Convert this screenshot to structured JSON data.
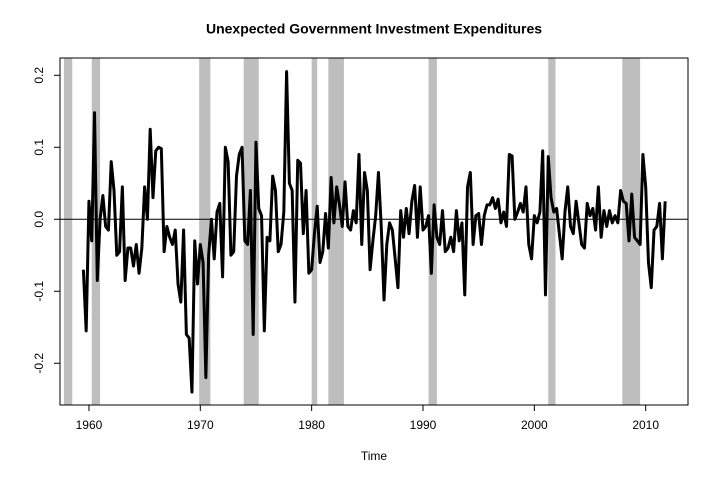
{
  "chart_data": {
    "type": "line",
    "title": "Unexpected Government Investment Expenditures",
    "xlabel": "Time",
    "xlim": [
      1957.4,
      2013.8
    ],
    "ylim": [
      -0.258,
      0.224
    ],
    "xticks": [
      1960,
      1970,
      1980,
      1990,
      2000,
      2010
    ],
    "yticks": [
      -0.2,
      -0.1,
      {
        "value": 0,
        "label": "0.0"
      },
      0.1,
      0.2
    ],
    "hline": 0,
    "shading": [
      [
        1957.75,
        1958.5
      ],
      [
        1960.25,
        1961.0
      ],
      [
        1969.9,
        1970.9
      ],
      [
        1973.9,
        1975.25
      ],
      [
        1980.0,
        1980.5
      ],
      [
        1981.5,
        1982.9
      ],
      [
        1990.5,
        1991.25
      ],
      [
        2001.25,
        2001.9
      ],
      [
        2007.9,
        2009.5
      ]
    ],
    "shading_color": "#bebebe",
    "series": [
      {
        "color": "#000000",
        "x": [
          1959.5,
          1959.75,
          1960,
          1960.25,
          1960.5,
          1960.75,
          1961,
          1961.25,
          1961.5,
          1961.75,
          1962,
          1962.25,
          1962.5,
          1962.75,
          1963,
          1963.25,
          1963.5,
          1963.75,
          1964,
          1964.25,
          1964.5,
          1964.75,
          1965,
          1965.25,
          1965.5,
          1965.75,
          1966,
          1966.25,
          1966.5,
          1966.75,
          1967,
          1967.25,
          1967.5,
          1967.75,
          1968,
          1968.25,
          1968.5,
          1968.75,
          1969,
          1969.25,
          1969.5,
          1969.75,
          1970,
          1970.25,
          1970.5,
          1970.75,
          1971,
          1971.25,
          1971.5,
          1971.75,
          1972,
          1972.25,
          1972.5,
          1972.75,
          1973,
          1973.25,
          1973.5,
          1973.75,
          1974,
          1974.25,
          1974.5,
          1974.75,
          1975,
          1975.25,
          1975.5,
          1975.75,
          1976,
          1976.25,
          1976.5,
          1976.75,
          1977,
          1977.25,
          1977.5,
          1977.75,
          1978,
          1978.25,
          1978.5,
          1978.75,
          1979,
          1979.25,
          1979.5,
          1979.75,
          1980,
          1980.25,
          1980.5,
          1980.75,
          1981,
          1981.25,
          1981.5,
          1981.75,
          1982,
          1982.25,
          1982.5,
          1982.75,
          1983,
          1983.25,
          1983.5,
          1983.75,
          1984,
          1984.25,
          1984.5,
          1984.75,
          1985,
          1985.25,
          1985.5,
          1985.75,
          1986,
          1986.25,
          1986.5,
          1986.75,
          1987,
          1987.25,
          1987.5,
          1987.75,
          1988,
          1988.25,
          1988.5,
          1988.75,
          1989,
          1989.25,
          1989.5,
          1989.75,
          1990,
          1990.25,
          1990.5,
          1990.75,
          1991,
          1991.25,
          1991.5,
          1991.75,
          1992,
          1992.25,
          1992.5,
          1992.75,
          1993,
          1993.25,
          1993.5,
          1993.75,
          1994,
          1994.25,
          1994.5,
          1994.75,
          1995,
          1995.25,
          1995.5,
          1995.75,
          1996,
          1996.25,
          1996.5,
          1996.75,
          1997,
          1997.25,
          1997.5,
          1997.75,
          1998,
          1998.25,
          1998.5,
          1998.75,
          1999,
          1999.25,
          1999.5,
          1999.75,
          2000,
          2000.25,
          2000.5,
          2000.75,
          2001,
          2001.25,
          2001.5,
          2001.75,
          2002,
          2002.25,
          2002.5,
          2002.75,
          2003,
          2003.25,
          2003.5,
          2003.75,
          2004,
          2004.25,
          2004.5,
          2004.75,
          2005,
          2005.25,
          2005.5,
          2005.75,
          2006,
          2006.25,
          2006.5,
          2006.75,
          2007,
          2007.25,
          2007.5,
          2007.75,
          2008,
          2008.25,
          2008.5,
          2008.75,
          2009,
          2009.25,
          2009.5,
          2009.75,
          2010,
          2010.25,
          2010.5,
          2010.75,
          2011,
          2011.25,
          2011.5,
          2011.75
        ],
        "values": [
          -0.07,
          -0.155,
          0.025,
          -0.03,
          0.148,
          -0.085,
          0.0,
          0.033,
          -0.01,
          -0.015,
          0.08,
          0.04,
          -0.05,
          -0.045,
          0.045,
          -0.085,
          -0.04,
          -0.04,
          -0.065,
          -0.035,
          -0.075,
          -0.04,
          0.045,
          0.0,
          0.125,
          0.03,
          0.095,
          0.1,
          0.098,
          -0.045,
          -0.01,
          -0.025,
          -0.035,
          -0.015,
          -0.09,
          -0.115,
          -0.015,
          -0.16,
          -0.165,
          -0.24,
          -0.03,
          -0.09,
          -0.035,
          -0.06,
          -0.22,
          -0.05,
          0.0,
          -0.055,
          0.01,
          0.022,
          -0.08,
          0.1,
          0.08,
          -0.05,
          -0.045,
          0.06,
          0.09,
          0.1,
          -0.03,
          -0.035,
          0.04,
          -0.16,
          0.107,
          0.015,
          0.005,
          -0.155,
          -0.025,
          -0.03,
          0.06,
          0.04,
          -0.045,
          -0.035,
          0.01,
          0.205,
          0.05,
          0.04,
          -0.115,
          0.082,
          0.078,
          -0.02,
          0.04,
          -0.075,
          -0.07,
          -0.02,
          0.018,
          -0.06,
          -0.045,
          0.008,
          -0.04,
          0.058,
          -0.005,
          0.045,
          0.02,
          -0.01,
          0.052,
          -0.01,
          -0.015,
          0.012,
          -0.005,
          0.09,
          -0.035,
          0.065,
          0.04,
          -0.07,
          -0.03,
          0.005,
          0.065,
          -0.01,
          -0.112,
          -0.035,
          -0.005,
          -0.015,
          -0.055,
          -0.095,
          0.012,
          -0.025,
          0.015,
          -0.02,
          0.025,
          0.047,
          -0.025,
          0.045,
          -0.015,
          -0.01,
          0.005,
          -0.075,
          0.02,
          -0.025,
          -0.035,
          0.012,
          -0.045,
          -0.04,
          -0.025,
          -0.045,
          0.012,
          -0.03,
          -0.005,
          -0.105,
          0.045,
          0.065,
          -0.035,
          0.005,
          0.008,
          -0.035,
          0.005,
          0.02,
          0.02,
          0.03,
          0.015,
          0.028,
          -0.005,
          0.01,
          -0.01,
          0.09,
          0.088,
          0.0,
          0.01,
          0.022,
          0.01,
          0.045,
          -0.035,
          -0.055,
          0.005,
          -0.005,
          0.01,
          0.095,
          -0.105,
          0.087,
          0.03,
          0.01,
          0.015,
          -0.02,
          -0.055,
          0.01,
          0.045,
          -0.01,
          -0.02,
          0.025,
          -0.005,
          -0.035,
          -0.04,
          0.022,
          0.005,
          0.015,
          -0.015,
          0.045,
          -0.025,
          0.012,
          -0.01,
          0.012,
          -0.005,
          0.005,
          -0.005,
          0.04,
          0.025,
          0.022,
          -0.03,
          0.035,
          -0.025,
          -0.03,
          -0.035,
          0.09,
          0.045,
          -0.06,
          -0.095,
          -0.015,
          -0.01,
          0.022,
          -0.055,
          0.025
        ]
      }
    ]
  }
}
